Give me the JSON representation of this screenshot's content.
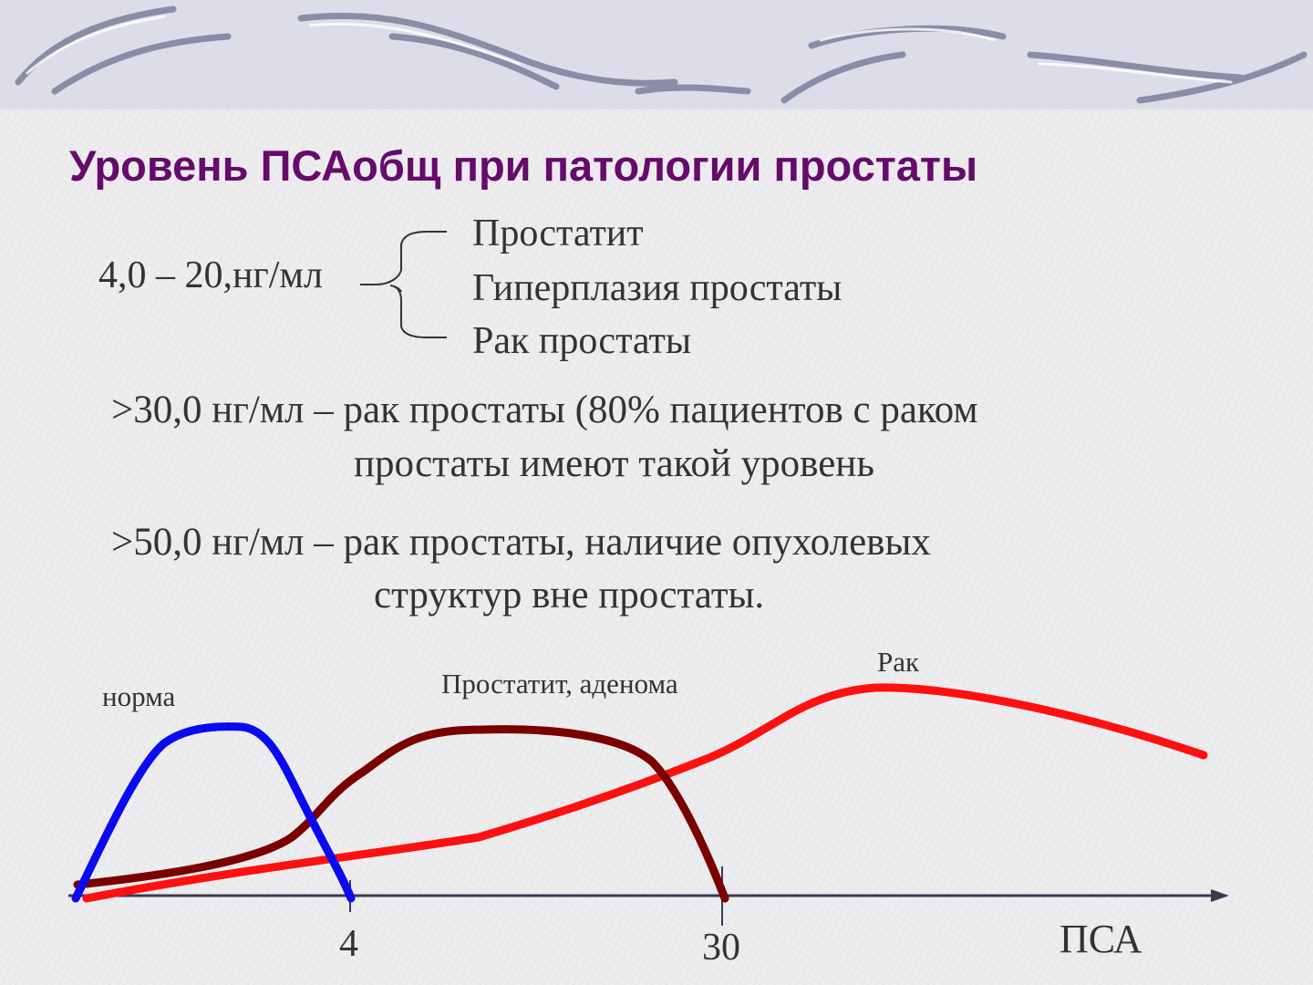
{
  "title": "Уровень ПСАобщ  при патологии простаты",
  "range_label": "4,0 – 20,нг/мл",
  "conditions": [
    "Простатит",
    "Гиперплазия простаты",
    "Рак простаты"
  ],
  "statement_30": {
    "line1": ">30,0 нг/мл – рак простаты (80% пациентов с раком",
    "line2": "простаты имеют такой уровень"
  },
  "statement_50": {
    "line1": ">50,0 нг/мл – рак простаты, наличие опухолевых",
    "line2": "структур вне простаты."
  },
  "diagram": {
    "axis_label": "ПСА",
    "tick_labels": [
      "4",
      "30"
    ],
    "curve_labels": {
      "norm": "норма",
      "prostatitis": "Простатит, аденома",
      "cancer": "Рак"
    },
    "colors": {
      "norm": "#0a0af0",
      "prostatitis": "#7a0000",
      "cancer": "#ff1010",
      "axis": "#3a3a55"
    }
  }
}
